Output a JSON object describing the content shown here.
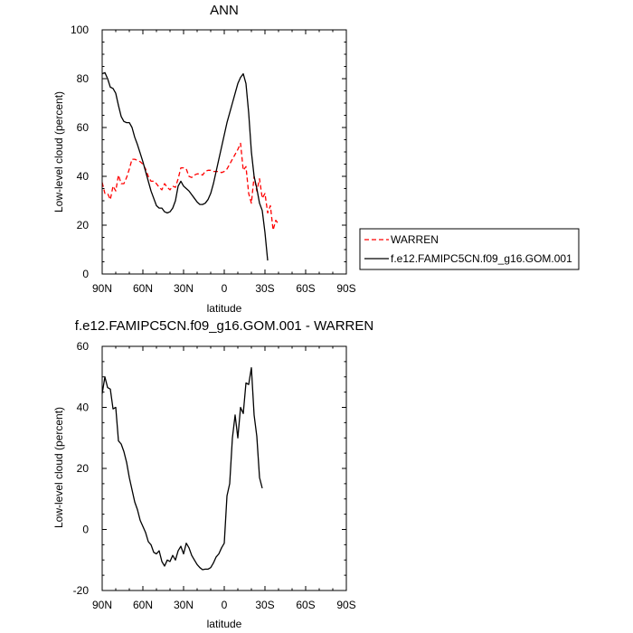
{
  "chart_data": [
    {
      "type": "line",
      "title": "ANN",
      "xlabel": "latitude",
      "ylabel": "Low-level cloud (percent)",
      "xlim": [
        90,
        -90
      ],
      "ylim": [
        0,
        100
      ],
      "xticks": [
        90,
        60,
        30,
        0,
        -30,
        -60,
        -90
      ],
      "xtick_labels": [
        "90N",
        "60N",
        "30N",
        "0",
        "30S",
        "60S",
        "90S"
      ],
      "yticks": [
        0,
        20,
        40,
        60,
        80,
        100
      ],
      "ytick_labels": [
        "0",
        "20",
        "40",
        "60",
        "80",
        "100"
      ],
      "legend_position": "right",
      "series": [
        {
          "name": "WARREN",
          "color": "#ff0000",
          "style": "dashed",
          "points": [
            [
              90,
              37.5
            ],
            [
              88,
              33
            ],
            [
              86,
              33
            ],
            [
              84,
              30.5
            ],
            [
              82,
              36
            ],
            [
              80,
              34
            ],
            [
              78,
              40.5
            ],
            [
              76,
              37
            ],
            [
              74,
              37
            ],
            [
              72,
              39.5
            ],
            [
              70,
              43
            ],
            [
              68,
              47
            ],
            [
              66,
              47
            ],
            [
              64,
              46.5
            ],
            [
              62,
              46
            ],
            [
              60,
              45
            ],
            [
              58,
              43
            ],
            [
              56,
              40
            ],
            [
              54,
              38
            ],
            [
              52,
              38
            ],
            [
              50,
              37
            ],
            [
              48,
              35.5
            ],
            [
              46,
              34.5
            ],
            [
              44,
              37
            ],
            [
              42,
              35.5
            ],
            [
              40,
              34.5
            ],
            [
              38,
              36
            ],
            [
              36,
              35.5
            ],
            [
              34,
              39
            ],
            [
              32,
              43.5
            ],
            [
              30,
              43.5
            ],
            [
              28,
              43
            ],
            [
              26,
              40
            ],
            [
              24,
              39.5
            ],
            [
              22,
              40.5
            ],
            [
              20,
              41
            ],
            [
              18,
              41
            ],
            [
              16,
              40.5
            ],
            [
              14,
              42
            ],
            [
              12,
              42.5
            ],
            [
              10,
              42.5
            ],
            [
              8,
              42
            ],
            [
              6,
              42
            ],
            [
              4,
              42
            ],
            [
              2,
              41.5
            ],
            [
              0,
              42
            ],
            [
              -2,
              43
            ],
            [
              -4,
              45
            ],
            [
              -6,
              47
            ],
            [
              -8,
              49
            ],
            [
              -10,
              51
            ],
            [
              -12,
              53.5
            ],
            [
              -14,
              42.5
            ],
            [
              -16,
              44
            ],
            [
              -18,
              33
            ],
            [
              -20,
              29
            ],
            [
              -22,
              40
            ],
            [
              -24,
              34
            ],
            [
              -26,
              39
            ],
            [
              -28,
              31
            ],
            [
              -30,
              33
            ],
            [
              -32,
              25
            ],
            [
              -34,
              28
            ],
            [
              -36,
              18
            ],
            [
              -38,
              22
            ],
            [
              -40,
              20.5
            ]
          ]
        },
        {
          "name": "f.e12.FAMIPC5CN.f09_g16.GOM.001",
          "color": "#000000",
          "style": "solid",
          "points": [
            [
              90,
              82
            ],
            [
              88,
              82.5
            ],
            [
              86,
              80
            ],
            [
              84,
              76.5
            ],
            [
              82,
              76
            ],
            [
              80,
              74
            ],
            [
              78,
              69
            ],
            [
              76,
              64.5
            ],
            [
              74,
              62.5
            ],
            [
              72,
              62
            ],
            [
              70,
              62
            ],
            [
              68,
              60
            ],
            [
              66,
              56
            ],
            [
              64,
              53
            ],
            [
              62,
              49.5
            ],
            [
              60,
              46
            ],
            [
              58,
              42
            ],
            [
              56,
              38
            ],
            [
              54,
              34
            ],
            [
              52,
              31
            ],
            [
              50,
              28
            ],
            [
              48,
              27
            ],
            [
              46,
              27
            ],
            [
              44,
              25.5
            ],
            [
              42,
              25
            ],
            [
              40,
              25.5
            ],
            [
              38,
              27
            ],
            [
              36,
              30
            ],
            [
              34,
              36
            ],
            [
              32,
              38
            ],
            [
              30,
              36
            ],
            [
              28,
              35
            ],
            [
              26,
              34
            ],
            [
              24,
              32.5
            ],
            [
              22,
              31
            ],
            [
              20,
              29.5
            ],
            [
              18,
              28.5
            ],
            [
              16,
              28.5
            ],
            [
              14,
              29
            ],
            [
              12,
              30.5
            ],
            [
              10,
              33
            ],
            [
              8,
              37
            ],
            [
              6,
              42
            ],
            [
              4,
              47
            ],
            [
              2,
              52
            ],
            [
              0,
              57
            ],
            [
              -2,
              62
            ],
            [
              -4,
              66
            ],
            [
              -6,
              70
            ],
            [
              -8,
              74
            ],
            [
              -10,
              78
            ],
            [
              -12,
              80.5
            ],
            [
              -14,
              82
            ],
            [
              -16,
              78
            ],
            [
              -18,
              66
            ],
            [
              -20,
              50
            ],
            [
              -22,
              40
            ],
            [
              -24,
              35
            ],
            [
              -26,
              29
            ],
            [
              -28,
              26
            ],
            [
              -30,
              17
            ],
            [
              -32,
              5.5
            ]
          ]
        }
      ]
    },
    {
      "type": "line",
      "title": "f.e12.FAMIPC5CN.f09_g16.GOM.001 - WARREN",
      "xlabel": "latitude",
      "ylabel": "Low-level cloud (percent)",
      "xlim": [
        90,
        -90
      ],
      "ylim": [
        -20,
        60
      ],
      "xticks": [
        90,
        60,
        30,
        0,
        -30,
        -60,
        -90
      ],
      "xtick_labels": [
        "90N",
        "60N",
        "30N",
        "0",
        "30S",
        "60S",
        "90S"
      ],
      "yticks": [
        -20,
        0,
        20,
        40,
        60
      ],
      "ytick_labels": [
        "-20",
        "0",
        "20",
        "40",
        "60"
      ],
      "series": [
        {
          "color": "#000000",
          "style": "solid",
          "points": [
            [
              90,
              44.5
            ],
            [
              88,
              50
            ],
            [
              86,
              46.5
            ],
            [
              84,
              46
            ],
            [
              82,
              39.5
            ],
            [
              80,
              40
            ],
            [
              78,
              29
            ],
            [
              76,
              28
            ],
            [
              74,
              25.5
            ],
            [
              72,
              22
            ],
            [
              70,
              17
            ],
            [
              68,
              13
            ],
            [
              66,
              9
            ],
            [
              64,
              6.5
            ],
            [
              62,
              3
            ],
            [
              60,
              1
            ],
            [
              58,
              -1
            ],
            [
              56,
              -4
            ],
            [
              54,
              -5
            ],
            [
              52,
              -7.5
            ],
            [
              50,
              -8
            ],
            [
              48,
              -7
            ],
            [
              46,
              -10.5
            ],
            [
              44,
              -12
            ],
            [
              42,
              -10
            ],
            [
              40,
              -10.5
            ],
            [
              38,
              -8.5
            ],
            [
              36,
              -10
            ],
            [
              34,
              -7
            ],
            [
              32,
              -5.5
            ],
            [
              30,
              -8
            ],
            [
              28,
              -4.5
            ],
            [
              26,
              -6
            ],
            [
              24,
              -8.5
            ],
            [
              22,
              -10
            ],
            [
              20,
              -11.5
            ],
            [
              18,
              -12.5
            ],
            [
              16,
              -13.2
            ],
            [
              14,
              -13
            ],
            [
              12,
              -13
            ],
            [
              10,
              -12.5
            ],
            [
              8,
              -11
            ],
            [
              6,
              -9
            ],
            [
              4,
              -8
            ],
            [
              2,
              -6
            ],
            [
              0,
              -4.5
            ],
            [
              -2,
              11
            ],
            [
              -4,
              15
            ],
            [
              -6,
              30
            ],
            [
              -8,
              37.5
            ],
            [
              -10,
              30
            ],
            [
              -12,
              40
            ],
            [
              -14,
              38
            ],
            [
              -16,
              48
            ],
            [
              -18,
              47.5
            ],
            [
              -20,
              53
            ],
            [
              -22,
              37.5
            ],
            [
              -24,
              30.5
            ],
            [
              -26,
              17
            ],
            [
              -28,
              13.5
            ]
          ]
        }
      ]
    }
  ]
}
